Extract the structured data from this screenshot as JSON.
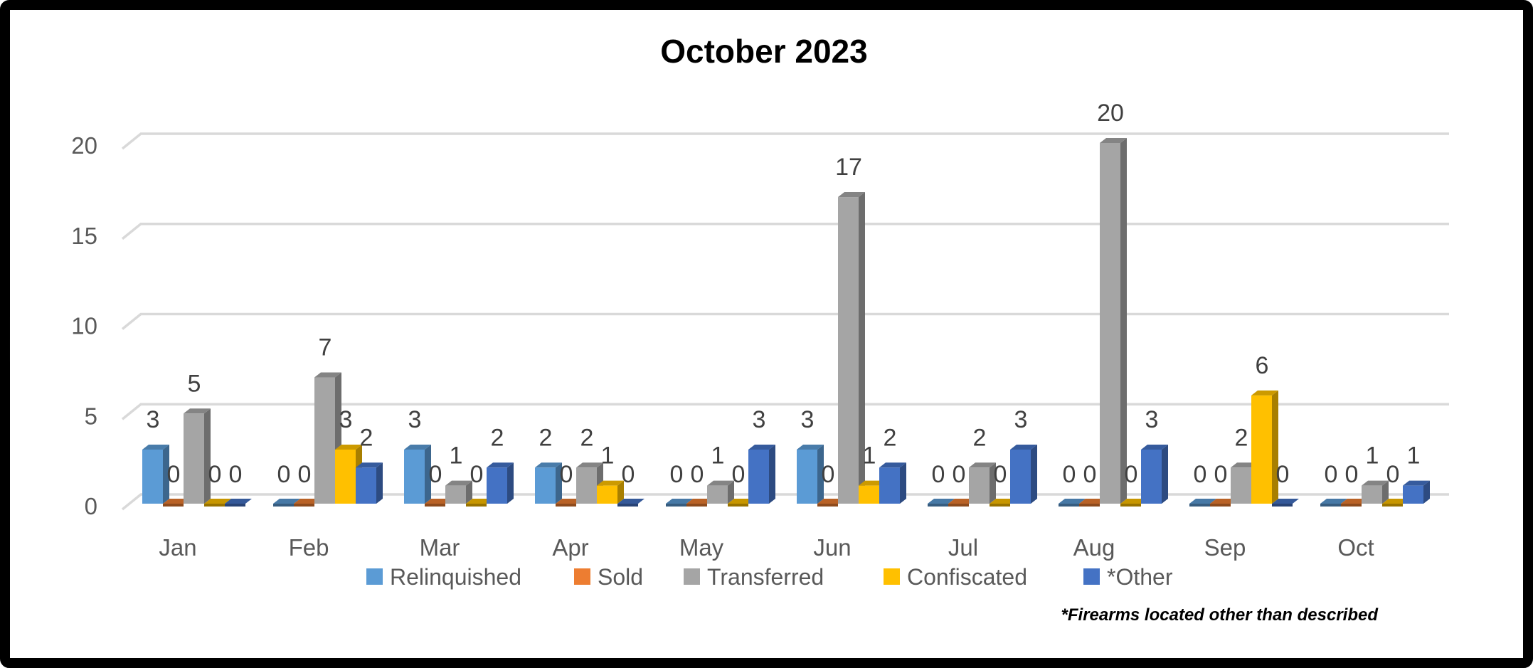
{
  "title": "October 2023",
  "footnote": "*Firearms located other than described",
  "palette": {
    "gridline": "#D9D9D9",
    "axis_text": "#595959",
    "data_label_text": "#404040",
    "title_text": "#000000",
    "frame": "#000000"
  },
  "chart_data": {
    "type": "bar",
    "projection": "3d",
    "title": "October 2023",
    "xlabel": "",
    "ylabel": "",
    "ylim": [
      0,
      20
    ],
    "y_ticks": [
      0,
      5,
      10,
      15,
      20
    ],
    "grid": true,
    "data_labels": true,
    "legend_position": "bottom",
    "categories": [
      "Jan",
      "Feb",
      "Mar",
      "Apr",
      "May",
      "Jun",
      "Jul",
      "Aug",
      "Sep",
      "Oct"
    ],
    "series": [
      {
        "name": "Relinquished",
        "color": "#5B9BD5",
        "values": [
          3,
          0,
          3,
          2,
          0,
          3,
          0,
          0,
          0,
          0
        ]
      },
      {
        "name": "Sold",
        "color": "#ED7D31",
        "values": [
          0,
          0,
          0,
          0,
          0,
          0,
          0,
          0,
          0,
          0
        ]
      },
      {
        "name": "Transferred",
        "color": "#A5A5A5",
        "values": [
          5,
          7,
          1,
          2,
          1,
          17,
          2,
          20,
          2,
          1
        ]
      },
      {
        "name": "Confiscated",
        "color": "#FFC000",
        "values": [
          0,
          3,
          0,
          1,
          0,
          1,
          0,
          0,
          6,
          0
        ]
      },
      {
        "name": "*Other",
        "color": "#4472C4",
        "values": [
          0,
          2,
          2,
          0,
          3,
          2,
          3,
          3,
          0,
          1
        ]
      }
    ]
  }
}
